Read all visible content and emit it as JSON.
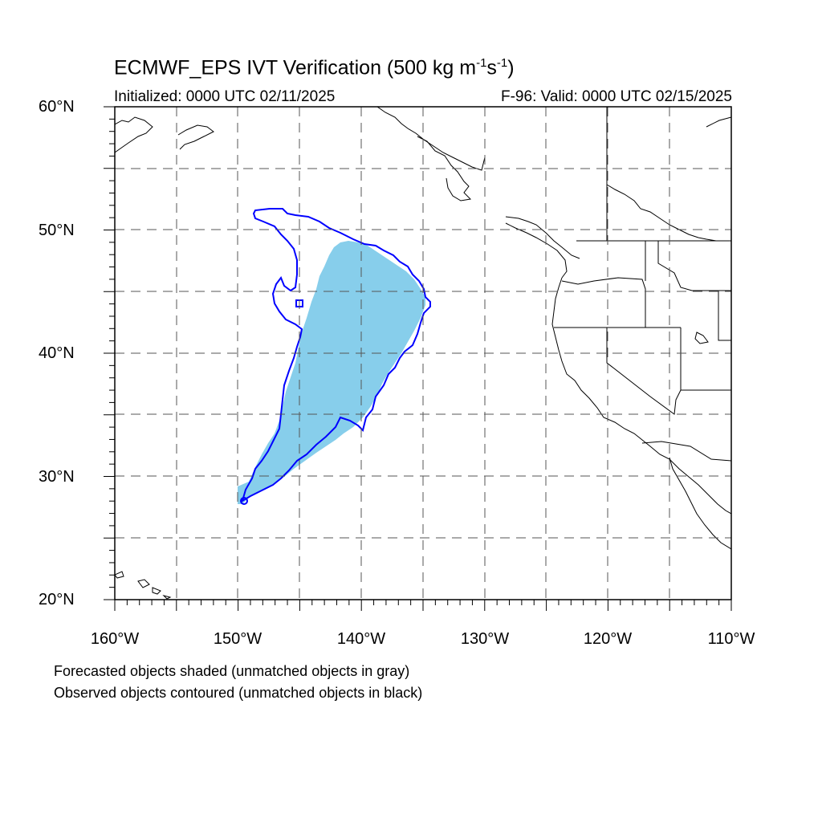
{
  "title": {
    "text_main": "ECMWF_EPS IVT Verification (500 kg m",
    "exp1": "-1",
    "text_mid": "s",
    "exp2": "-1",
    "text_end": ")"
  },
  "subtitle": {
    "left": "Initialized: 0000 UTC 02/11/2025",
    "right": "F-96: Valid: 0000 UTC 02/15/2025"
  },
  "axes": {
    "lat_labels": [
      "60°N",
      "50°N",
      "40°N",
      "30°N",
      "20°N"
    ],
    "lon_labels": [
      "160°W",
      "150°W",
      "140°W",
      "130°W",
      "120°W",
      "110°W"
    ]
  },
  "map": {
    "lon_range": [
      -160,
      -110
    ],
    "lat_range": [
      20,
      60
    ],
    "grid_interval_deg": 5,
    "grid": true,
    "grid_style": "dashed",
    "forecast_object_color": "#87ceeb",
    "observed_contour_color": "#0000ff",
    "coastline_color": "#000000"
  },
  "notes": {
    "line1": "Forecasted objects shaded (unmatched objects in gray)",
    "line2": "Observed objects contoured (unmatched objects in black)"
  }
}
